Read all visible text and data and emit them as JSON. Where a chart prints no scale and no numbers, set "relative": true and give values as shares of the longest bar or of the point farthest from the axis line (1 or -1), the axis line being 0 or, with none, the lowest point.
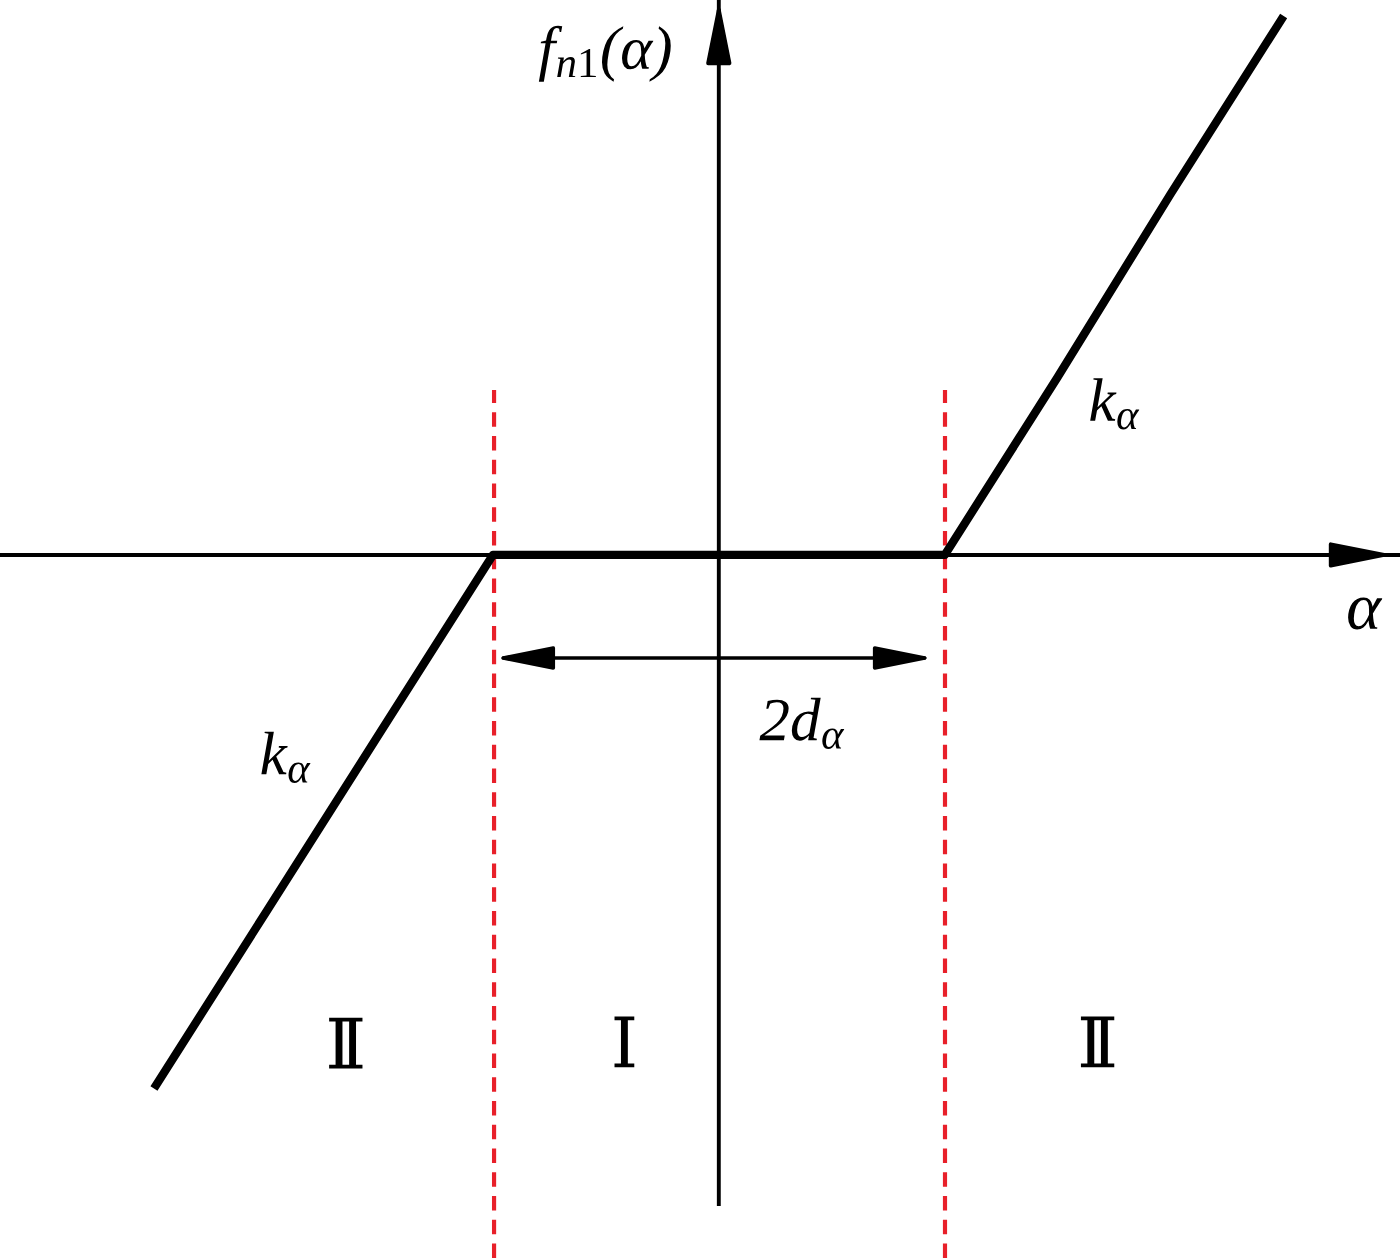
{
  "chart_data": {
    "type": "line",
    "relative": true,
    "categories": [
      null,
      null,
      null,
      null,
      null,
      null,
      null,
      null,
      null,
      null,
      null
    ],
    "series": [
      {
        "color": "#000000",
        "values": [
          -0.99,
          -0.66,
          -0.33,
          0,
          0,
          0,
          0,
          0,
          0.33,
          0.67,
          1
        ]
      }
    ],
    "xlabel": "α",
    "ylabel": "f$_{n1}$(α)",
    "annotations": [
      "k$_{α}$",
      "k$_{α}$",
      "2d$_{α}$",
      "Ⅱ",
      "Ⅰ",
      "Ⅱ"
    ]
  }
}
